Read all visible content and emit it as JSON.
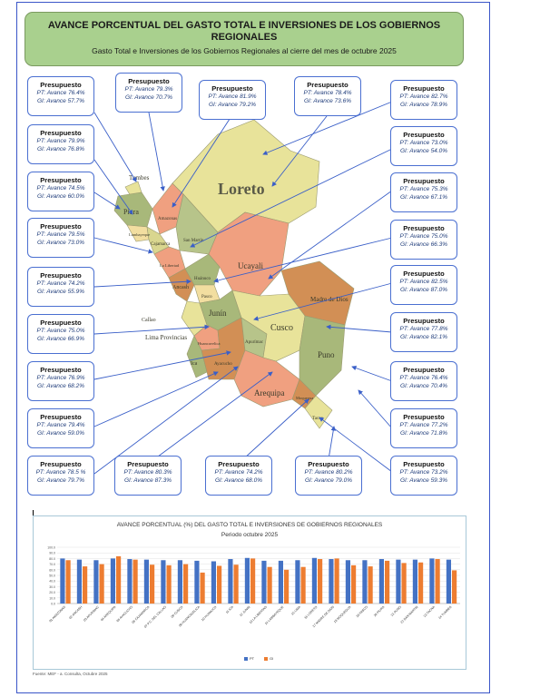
{
  "header": {
    "title": "AVANCE PORCENTUAL DEL GASTO TOTAL E INVERSIONES DE LOS GOBIERNOS REGIONALES",
    "subtitle": "Gasto Total e Inversiones de los Gobiernos Regionales al cierre del mes de octubre 2025"
  },
  "map_labels": {
    "tumbes": "Tumbes",
    "piura": "Piura",
    "loreto": "Loreto",
    "san_martin": "San Martín",
    "amazonas": "Amazonas",
    "cajamarca": "Cajamarca",
    "lambayeque": "Lambayeque",
    "la_libertad": "La Libertad",
    "ancash": "Ancash",
    "huanuco": "Huánuco",
    "ucayali": "Ucayali",
    "pasco": "Pasco",
    "junin": "Junín",
    "callao": "Callao",
    "lima_provincias": "Lima Provincias",
    "huancavelica": "Huancavelica",
    "ica": "Ica",
    "ayacucho": "Ayacucho",
    "apurimac": "Apurímac",
    "cusco": "Cusco",
    "madre_de_dios": "Madre de Dios",
    "puno": "Puno",
    "arequipa": "Arequipa",
    "moquegua": "Moquegua",
    "tacna": "Tacna"
  },
  "boxes": [
    {
      "title": "Presupuesto",
      "pt": "PT: Avance 76.4%",
      "gi": "GI: Avance 57.7%"
    },
    {
      "title": "Presupuesto",
      "pt": "PT: Avance 79.3%",
      "gi": "GI: Avance 70.7%"
    },
    {
      "title": "Presupuesto",
      "pt": "PT: Avance 81.9%",
      "gi": "GI: Avance 79.2%"
    },
    {
      "title": "Presupuesto",
      "pt": "PT: Avance 78.4%",
      "gi": "GI: Avance 73.6%"
    },
    {
      "title": "Presupuesto",
      "pt": "PT: Avance 82.7%",
      "gi": "GI: Avance 78.9%"
    },
    {
      "title": "Presupuesto",
      "pt": "PT: Avance 79.9%",
      "gi": "GI: Avance 76.8%"
    },
    {
      "title": "Presupuesto",
      "pt": "PT: Avance 73.0%",
      "gi": "GI: Avance 54.0%"
    },
    {
      "title": "Presupuesto",
      "pt": "PT: Avance 74.5%",
      "gi": "GI: Avance 60.0%"
    },
    {
      "title": "Presupuesto",
      "pt": "PT: Avance 75.3%",
      "gi": "GI: Avance 67.1%"
    },
    {
      "title": "Presupuesto",
      "pt": "PT: Avance 79.5%",
      "gi": "GI: Avance 73.0%"
    },
    {
      "title": "Presupuesto",
      "pt": "PT: Avance 75.0%",
      "gi": "GI: Avance 66.3%"
    },
    {
      "title": "Presupuesto",
      "pt": "PT: Avance 74.2%",
      "gi": "GI: Avance 55.9%"
    },
    {
      "title": "Presupuesto",
      "pt": "PT: Avance 82.5%",
      "gi": "GI: Avance 87.0%"
    },
    {
      "title": "Presupuesto",
      "pt": "PT: Avance 75.0%",
      "gi": "GI: Avance 66.9%"
    },
    {
      "title": "Presupuesto",
      "pt": "PT: Avance 77.8%",
      "gi": "GI: Avance 82.1%"
    },
    {
      "title": "Presupuesto",
      "pt": "PT: Avance 76.9%",
      "gi": "GI: Avance 68.2%"
    },
    {
      "title": "Presupuesto",
      "pt": "PT: Avance 76.4%",
      "gi": "GI: Avance 70.4%"
    },
    {
      "title": "Presupuesto",
      "pt": "PT: Avance 79.4%",
      "gi": "GI: Avance 59.0%"
    },
    {
      "title": "Presupuesto",
      "pt": "PT: Avance 77.2%",
      "gi": "GI: Avance 71.8%"
    },
    {
      "title": "Presupuesto",
      "pt": "PT: Avance 78.5 %",
      "gi": "GI: Avance 79.7%"
    },
    {
      "title": "Presupuesto",
      "pt": "PT: Avance 80.3%",
      "gi": "GI: Avance 87.3%"
    },
    {
      "title": "Presupuesto",
      "pt": "PT: Avance 74.2%",
      "gi": "GI: Avance 68.0%"
    },
    {
      "title": "Presupuesto",
      "pt": "PT: Avance 80.2%",
      "gi": "GI: Avance 79.0%"
    },
    {
      "title": "Presupuesto",
      "pt": "PT: Avance 73.2%",
      "gi": "GI: Avance 59.3%"
    }
  ],
  "source_note": "Fuente: MEF - a. Consulta, Octubre 2025",
  "colors": {
    "header_bg": "#a9d08e",
    "box_border": "#4a6fd1",
    "series_pt": "#4472c4",
    "series_gi": "#ed7d31"
  },
  "chart_data": {
    "type": "bar",
    "title": "AVANCE PORCENTUAL (%) DEL GASTO TOTAL E INVERSIONES DE GOBIERNOS REGIONALES",
    "subtitle": "Periodo octubre 2025",
    "categories": [
      "01 AMAZONAS",
      "02 ANCASH",
      "03 APURIMAC",
      "04 AREQUIPA",
      "05 AYACUCHO",
      "06 CAJAMARCA",
      "07 P.C. DEL CALLAO",
      "08 CUSCO",
      "09 HUANCAVELICA",
      "10 HUANUCO",
      "11 ICA",
      "12 JUNIN",
      "13 LA LIBERTAD",
      "14 LAMBAYEQUE",
      "15 LIMA",
      "16 LORETO",
      "17 MADRE DE DIOS",
      "18 MOQUEGUA",
      "19 PASCO",
      "20 PIURA",
      "21 PUNO",
      "22 SAN MARTIN",
      "23 TACNA",
      "24 TUMBES"
    ],
    "series": [
      {
        "name": "PT",
        "values": [
          80,
          78,
          77,
          80,
          79,
          78,
          77,
          77,
          76,
          75,
          79,
          81,
          76,
          76,
          77,
          81,
          79,
          77,
          77,
          79,
          78,
          78,
          80,
          78
        ]
      },
      {
        "name": "GI",
        "values": [
          77,
          66,
          70,
          84,
          78,
          69,
          68,
          70,
          55,
          67,
          69,
          80,
          65,
          60,
          65,
          79,
          80,
          68,
          66,
          76,
          72,
          73,
          79,
          59
        ]
      }
    ],
    "ylim": [
      0,
      100
    ],
    "yticks": [
      "0.0",
      "10.0",
      "20.0",
      "30.0",
      "40.0",
      "50.0",
      "60.0",
      "70.0",
      "80.0",
      "90.0",
      "100.0"
    ],
    "grid": true,
    "legend": [
      "PT",
      "GI"
    ],
    "legend_position": "bottom"
  }
}
